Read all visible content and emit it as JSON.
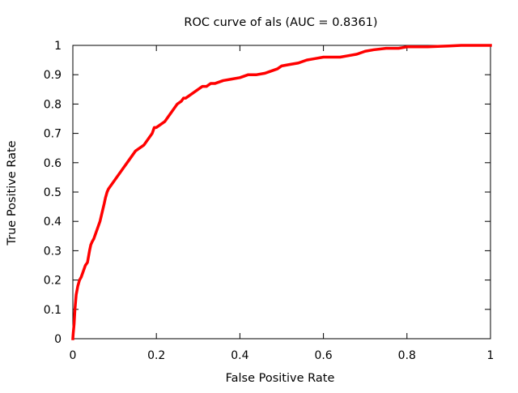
{
  "chart_data": {
    "type": "line",
    "title": "ROC curve of als (AUC = 0.8361)",
    "xlabel": "False Positive Rate",
    "ylabel": "True Positive Rate",
    "xlim": [
      0,
      1
    ],
    "ylim": [
      0,
      1
    ],
    "grid": false,
    "legend": "none",
    "x_ticks": [
      "0",
      "0.2",
      "0.4",
      "0.6",
      "0.8",
      "1"
    ],
    "y_ticks": [
      "0",
      "0.1",
      "0.2",
      "0.3",
      "0.4",
      "0.5",
      "0.6",
      "0.7",
      "0.8",
      "0.9",
      "1"
    ],
    "series": [
      {
        "color": "#ff0000",
        "x": [
          0,
          0.001,
          0.003,
          0.005,
          0.008,
          0.012,
          0.016,
          0.02,
          0.025,
          0.03,
          0.035,
          0.04,
          0.043,
          0.046,
          0.05,
          0.055,
          0.06,
          0.065,
          0.07,
          0.075,
          0.078,
          0.08,
          0.082,
          0.085,
          0.09,
          0.1,
          0.105,
          0.11,
          0.12,
          0.13,
          0.14,
          0.15,
          0.16,
          0.17,
          0.18,
          0.19,
          0.195,
          0.2,
          0.21,
          0.22,
          0.23,
          0.235,
          0.24,
          0.25,
          0.26,
          0.265,
          0.27,
          0.28,
          0.29,
          0.3,
          0.31,
          0.32,
          0.33,
          0.34,
          0.36,
          0.38,
          0.4,
          0.42,
          0.44,
          0.46,
          0.47,
          0.49,
          0.5,
          0.52,
          0.54,
          0.56,
          0.58,
          0.6,
          0.62,
          0.64,
          0.66,
          0.68,
          0.7,
          0.72,
          0.75,
          0.78,
          0.8,
          0.85,
          0.88,
          0.9,
          0.93,
          0.96,
          1.0
        ],
        "y": [
          0,
          0.02,
          0.05,
          0.1,
          0.15,
          0.18,
          0.2,
          0.21,
          0.23,
          0.25,
          0.26,
          0.3,
          0.32,
          0.33,
          0.34,
          0.36,
          0.38,
          0.4,
          0.43,
          0.46,
          0.48,
          0.49,
          0.5,
          0.51,
          0.52,
          0.54,
          0.55,
          0.56,
          0.58,
          0.6,
          0.62,
          0.64,
          0.65,
          0.66,
          0.68,
          0.7,
          0.72,
          0.72,
          0.73,
          0.74,
          0.76,
          0.77,
          0.78,
          0.8,
          0.81,
          0.82,
          0.82,
          0.83,
          0.84,
          0.85,
          0.86,
          0.86,
          0.87,
          0.87,
          0.88,
          0.885,
          0.89,
          0.9,
          0.9,
          0.905,
          0.91,
          0.92,
          0.93,
          0.935,
          0.94,
          0.95,
          0.955,
          0.96,
          0.96,
          0.96,
          0.965,
          0.97,
          0.98,
          0.985,
          0.99,
          0.99,
          0.995,
          0.995,
          0.997,
          0.998,
          1.0,
          1.0,
          1.0
        ]
      }
    ]
  }
}
